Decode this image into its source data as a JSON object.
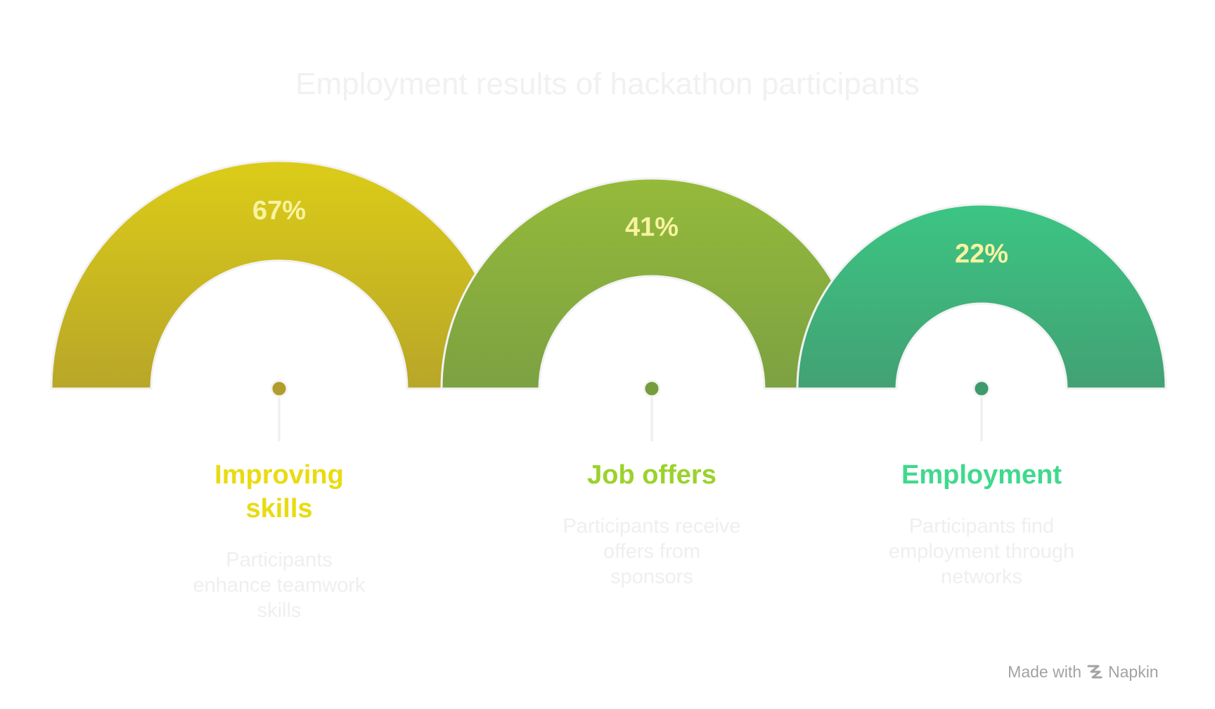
{
  "title": "Employment results of hackathon participants",
  "colors": {
    "percent_text": "#f7f3a0",
    "title": "#f1f1f1",
    "description": "#efefef",
    "connector": "#eeeeee",
    "footer": "#a3a3a3"
  },
  "items": [
    {
      "percent": 67,
      "percent_label": "67%",
      "label_lines": [
        "Improving",
        "skills"
      ],
      "description_lines": [
        "Participants",
        "enhance teamwork",
        "skills"
      ],
      "color_top": "#dccc18",
      "color_bottom": "#b8a628",
      "label_color": "#e9db12",
      "dot_color": "#b09d2a"
    },
    {
      "percent": 41,
      "percent_label": "41%",
      "label_lines": [
        "Job offers"
      ],
      "description_lines": [
        "Participants receive",
        "offers from",
        "sponsors"
      ],
      "color_top": "#95ba3a",
      "color_bottom": "#7ca142",
      "label_color": "#9bd22c",
      "dot_color": "#769c3c"
    },
    {
      "percent": 22,
      "percent_label": "22%",
      "label_lines": [
        "Employment"
      ],
      "description_lines": [
        "Participants find",
        "employment through",
        "networks"
      ],
      "color_top": "#3cc584",
      "color_bottom": "#42a173",
      "label_color": "#3fd98d",
      "dot_color": "#3c9a6c"
    }
  ],
  "footer": {
    "text": "Made with",
    "brand": "Napkin",
    "icon": "napkin-logo-icon"
  }
}
